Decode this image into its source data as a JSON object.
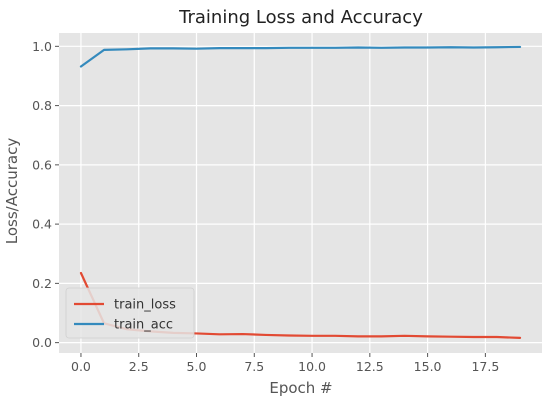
{
  "chart_data": {
    "type": "line",
    "title": "Training Loss and Accuracy",
    "xlabel": "Epoch #",
    "ylabel": "Loss/Accuracy",
    "xlim": [
      -0.95,
      19.95
    ],
    "ylim": [
      -0.035,
      1.045
    ],
    "x_ticks": [
      0.0,
      2.5,
      5.0,
      7.5,
      10.0,
      12.5,
      15.0,
      17.5
    ],
    "x_tick_labels": [
      "0.0",
      "2.5",
      "5.0",
      "7.5",
      "10.0",
      "12.5",
      "15.0",
      "17.5"
    ],
    "y_ticks": [
      0.0,
      0.2,
      0.4,
      0.6,
      0.8,
      1.0
    ],
    "y_tick_labels": [
      "0.0",
      "0.2",
      "0.4",
      "0.6",
      "0.8",
      "1.0"
    ],
    "grid": true,
    "legend_position": "lower-left",
    "x": [
      0,
      1,
      2,
      3,
      4,
      5,
      6,
      7,
      8,
      9,
      10,
      11,
      12,
      13,
      14,
      15,
      16,
      17,
      18,
      19
    ],
    "series": [
      {
        "name": "train_loss",
        "color": "#E24A33",
        "values": [
          0.235,
          0.065,
          0.045,
          0.038,
          0.033,
          0.031,
          0.028,
          0.029,
          0.026,
          0.024,
          0.023,
          0.023,
          0.021,
          0.021,
          0.023,
          0.021,
          0.02,
          0.019,
          0.019,
          0.016
        ]
      },
      {
        "name": "train_acc",
        "color": "#348ABD",
        "values": [
          0.932,
          0.988,
          0.99,
          0.993,
          0.993,
          0.992,
          0.994,
          0.994,
          0.994,
          0.995,
          0.995,
          0.995,
          0.996,
          0.995,
          0.996,
          0.996,
          0.997,
          0.996,
          0.997,
          0.998
        ]
      }
    ]
  }
}
